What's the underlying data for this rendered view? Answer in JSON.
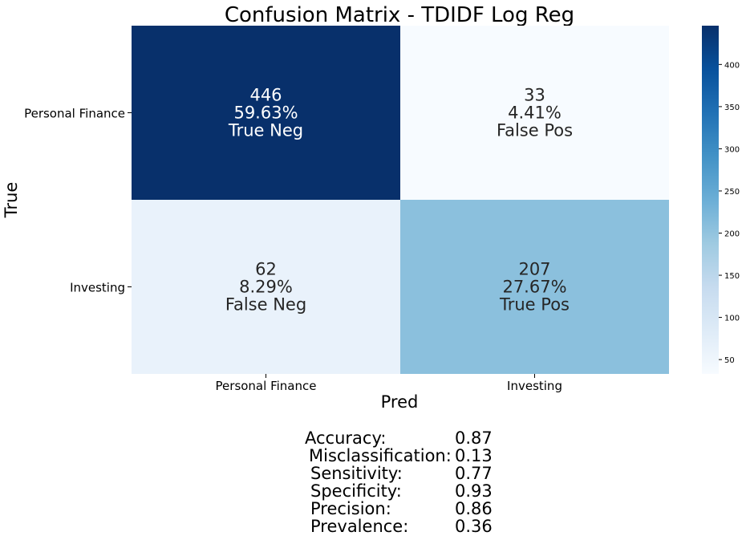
{
  "chart_data": {
    "type": "heatmap",
    "title": "Confusion Matrix - TDIDF Log Reg",
    "xlabel": "Pred",
    "ylabel": "True",
    "x_categories": [
      "Personal Finance",
      "Investing"
    ],
    "y_categories": [
      "Personal Finance",
      "Investing"
    ],
    "cells": [
      {
        "row": 0,
        "col": 0,
        "count": "446",
        "percent": "59.63%",
        "name": "True Neg"
      },
      {
        "row": 0,
        "col": 1,
        "count": "33",
        "percent": "4.41%",
        "name": "False Pos"
      },
      {
        "row": 1,
        "col": 0,
        "count": "62",
        "percent": "8.29%",
        "name": "False Neg"
      },
      {
        "row": 1,
        "col": 1,
        "count": "207",
        "percent": "27.67%",
        "name": "True Pos"
      }
    ],
    "colorbar": {
      "colormap": "Blues",
      "range": [
        33,
        446
      ],
      "ticks": [
        50,
        100,
        150,
        200,
        250,
        300,
        350,
        400
      ]
    }
  },
  "metrics": [
    {
      "label": "Accuracy:",
      "value": "0.87"
    },
    {
      "label": "Misclassification:",
      "value": "0.13"
    },
    {
      "label": "Sensitivity:",
      "value": "0.77"
    },
    {
      "label": "Specificity:",
      "value": "0.93"
    },
    {
      "label": "Precision:",
      "value": "0.86"
    },
    {
      "label": "Prevalence:",
      "value": "0.36"
    }
  ]
}
